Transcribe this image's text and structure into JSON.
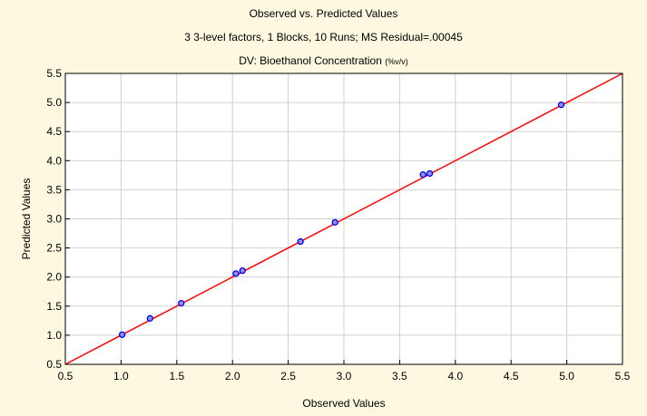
{
  "titles": {
    "line1": "Observed vs. Predicted Values",
    "line2": "3 3-level factors, 1 Blocks, 10 Runs; MS Residual=.00045",
    "line3_main": "DV: Bioethanol Concentration",
    "line3_unit": "(%v/v)"
  },
  "chart_data": {
    "type": "scatter",
    "title": "Observed vs. Predicted Values",
    "subtitle": "3 3-level factors, 1 Blocks, 10 Runs; MS Residual=.00045",
    "dependent_variable": "DV: Bioethanol Concentration (%v/v)",
    "xlabel": "Observed Values",
    "ylabel": "Predicted Values",
    "xlim": [
      0.5,
      5.5
    ],
    "ylim": [
      0.5,
      5.5
    ],
    "xticks": [
      "0.5",
      "1.0",
      "1.5",
      "2.0",
      "2.5",
      "3.0",
      "3.5",
      "4.0",
      "4.5",
      "5.0",
      "5.5"
    ],
    "yticks": [
      "0.5",
      "1.0",
      "1.5",
      "2.0",
      "2.5",
      "3.0",
      "3.5",
      "4.0",
      "4.5",
      "5.0",
      "5.5"
    ],
    "grid": true,
    "points": [
      {
        "x": 1.01,
        "y": 1.01
      },
      {
        "x": 1.26,
        "y": 1.29
      },
      {
        "x": 1.54,
        "y": 1.55
      },
      {
        "x": 2.03,
        "y": 2.06
      },
      {
        "x": 2.09,
        "y": 2.11
      },
      {
        "x": 2.61,
        "y": 2.61
      },
      {
        "x": 2.92,
        "y": 2.94
      },
      {
        "x": 3.71,
        "y": 3.76
      },
      {
        "x": 3.77,
        "y": 3.78
      },
      {
        "x": 4.95,
        "y": 4.96
      }
    ],
    "fit_line": {
      "x": [
        0.5,
        5.5
      ],
      "y": [
        0.5,
        5.5
      ]
    },
    "colors": {
      "point_stroke": "#0000e0",
      "point_fill": "#9090ff",
      "fit_line": "#ff0000",
      "grid": "#d0d0d0",
      "plot_background": "#ffffff",
      "page_background": "#fdf8e0"
    }
  }
}
